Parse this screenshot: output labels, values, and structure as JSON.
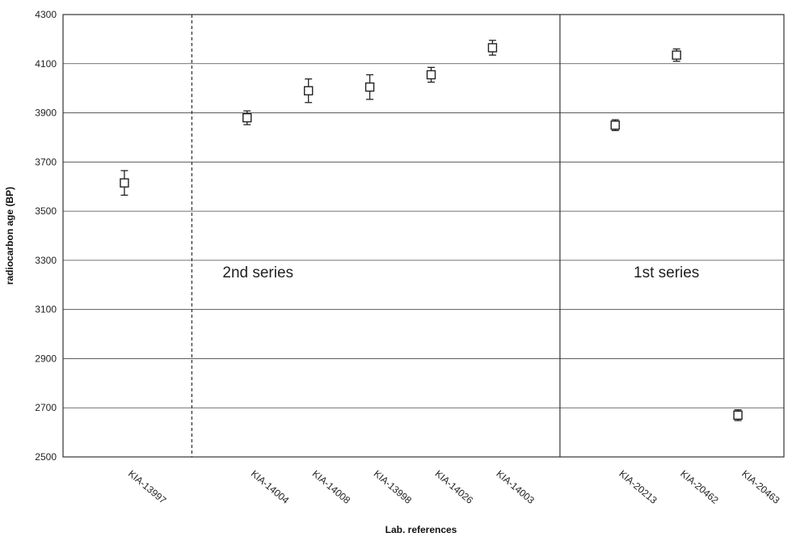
{
  "chart_data": {
    "type": "scatter",
    "title": "",
    "xlabel": "Lab. references",
    "ylabel": "radiocarbon age (BP)",
    "ylim": [
      2500,
      4300
    ],
    "yticks": [
      "2500",
      "2700",
      "2900",
      "3100",
      "3300",
      "3500",
      "3700",
      "3900",
      "4100",
      "4300"
    ],
    "grid": true,
    "categories": [
      "KIA-13997",
      "KIA-14004",
      "KIA-14008",
      "KIA-13998",
      "KIA-14026",
      "KIA-14003",
      "KIA-20213",
      "KIA-20462",
      "KIA-20463"
    ],
    "x_positions": [
      1,
      3,
      4,
      5,
      6,
      7,
      9,
      10,
      11
    ],
    "x_range": [
      0,
      11.75
    ],
    "values": [
      3615,
      3880,
      3990,
      4005,
      4055,
      4165,
      3850,
      4135,
      2670
    ],
    "errors": [
      50,
      28,
      48,
      50,
      30,
      30,
      22,
      25,
      22
    ],
    "dividers": [
      {
        "position": 2.1,
        "style": "dashed"
      },
      {
        "position": 8.1,
        "style": "solid"
      }
    ],
    "annotations": [
      {
        "text": "2nd series",
        "x": 2.6,
        "y": 3230
      },
      {
        "text": "1st series",
        "x": 9.3,
        "y": 3230
      }
    ]
  }
}
